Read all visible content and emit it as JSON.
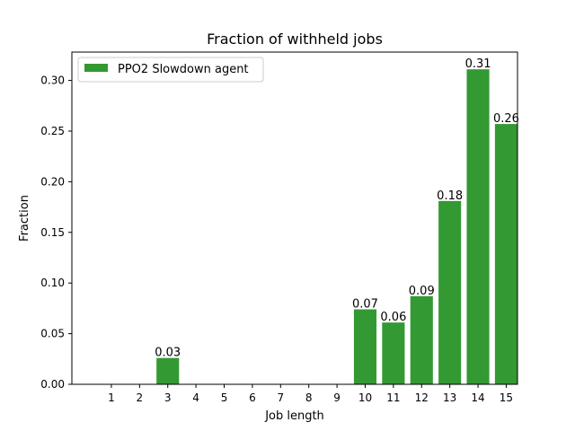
{
  "chart_data": {
    "type": "bar",
    "title": "Fraction of withheld jobs",
    "xlabel": "Job length",
    "ylabel": "Fraction",
    "categories": [
      "1",
      "2",
      "3",
      "4",
      "5",
      "6",
      "7",
      "8",
      "9",
      "10",
      "11",
      "12",
      "13",
      "14",
      "15"
    ],
    "series": [
      {
        "name": "PPO2 Slowdown agent",
        "color": "#339933",
        "values": [
          0,
          0,
          0.026,
          0,
          0,
          0,
          0,
          0,
          0,
          0.074,
          0.061,
          0.087,
          0.181,
          0.311,
          0.257
        ],
        "labels": [
          "",
          "",
          "0.03",
          "",
          "",
          "",
          "",
          "",
          "",
          "0.07",
          "0.06",
          "0.09",
          "0.18",
          "0.31",
          "0.26"
        ]
      }
    ],
    "ylim": [
      0,
      0.328
    ],
    "yticks": [
      0.0,
      0.05,
      0.1,
      0.15,
      0.2,
      0.25,
      0.3
    ],
    "ytick_labels": [
      "0.00",
      "0.05",
      "0.10",
      "0.15",
      "0.20",
      "0.25",
      "0.30"
    ],
    "legend_position": "top-left",
    "grid": false
  }
}
